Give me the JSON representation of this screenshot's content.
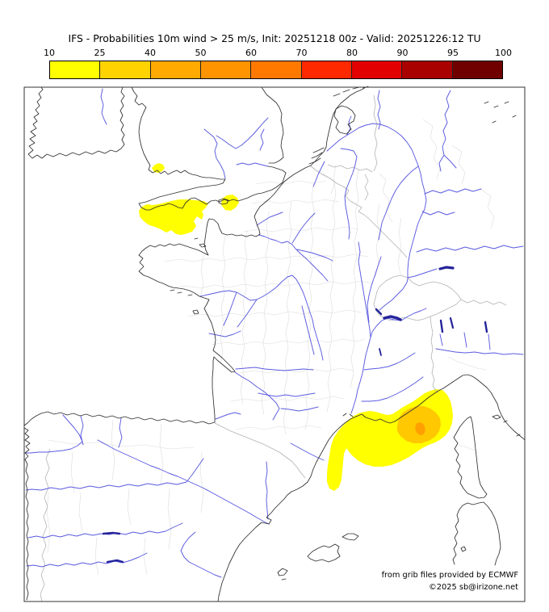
{
  "title": "IFS - Probabilities 10m wind > 25 m/s, Init: 20251218 00z - Valid: 20251226:12 TU",
  "legend": {
    "tick_labels": [
      "10",
      "25",
      "40",
      "50",
      "60",
      "70",
      "80",
      "90",
      "95",
      "100"
    ],
    "cell_colors": [
      "#FFFF00",
      "#FFD300",
      "#FFAA00",
      "#FF9400",
      "#FF7900",
      "#FF2900",
      "#E30000",
      "#A90000",
      "#700000"
    ]
  },
  "map": {
    "colors": {
      "coastline": "#2F2F2F",
      "river": "#5A5AE0",
      "lake": "#24249A",
      "border": "#B3B3B3",
      "department": "#DBDBDB",
      "prob_low": "#FFFF00",
      "prob_mid": "#FFC800",
      "prob_high": "#FFA000"
    },
    "regions": [
      {
        "name": "celtic-sea-blob",
        "level": "10-25"
      },
      {
        "name": "pembrokeshire-blob",
        "level": "10-25"
      },
      {
        "name": "western-channel-blob",
        "level": "10-25"
      },
      {
        "name": "gulf-of-lion-ligurian-blob",
        "level": "10-25"
      },
      {
        "name": "ligurian-inner-blob",
        "level": "25-40"
      },
      {
        "name": "ligurian-core-blob",
        "level": "40-50"
      }
    ]
  },
  "attribution": {
    "line1": "from grib files provided by ECMWF",
    "line2": "©2025 sb@irizone.net"
  }
}
